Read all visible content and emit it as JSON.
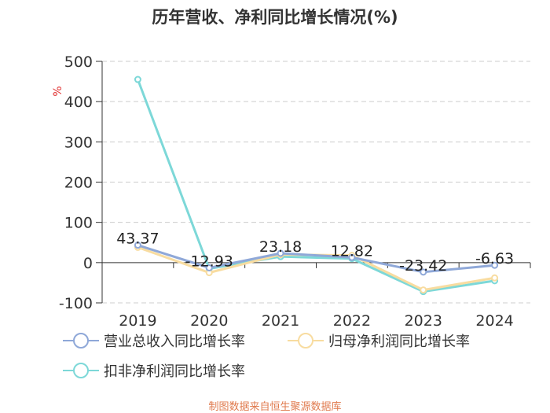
{
  "chart_data": {
    "type": "line",
    "title": "历年营收、净利同比增长情况(%)",
    "ylabel": "%",
    "categories": [
      "2019",
      "2020",
      "2021",
      "2022",
      "2023",
      "2024"
    ],
    "ylim": [
      -100,
      500
    ],
    "yticks": [
      -100,
      0,
      100,
      200,
      300,
      400,
      500
    ],
    "grid": "horizontal-dashed",
    "legend_position": "bottom",
    "series": [
      {
        "name": "营业总收入同比增长率",
        "color": "#8fa8d8",
        "values": [
          43.37,
          -12.93,
          23.18,
          12.82,
          -23.42,
          -6.63
        ],
        "labels": [
          "43.37",
          "-12.93",
          "23.18",
          "12.82",
          "-23.42",
          "-6.63"
        ]
      },
      {
        "name": "归母净利润同比增长率",
        "color": "#f8dca0",
        "values": [
          38,
          -25,
          20,
          18,
          -68,
          -38
        ]
      },
      {
        "name": "扣非净利润同比增长率",
        "color": "#7dd8d8",
        "values": [
          455,
          -15,
          15,
          10,
          -72,
          -45
        ]
      }
    ]
  },
  "legend": {
    "item1": "营业总收入同比增长率",
    "item2": "归母净利润同比增长率",
    "item3": "扣非净利润同比增长率"
  },
  "source": "制图数据来自恒生聚源数据库"
}
